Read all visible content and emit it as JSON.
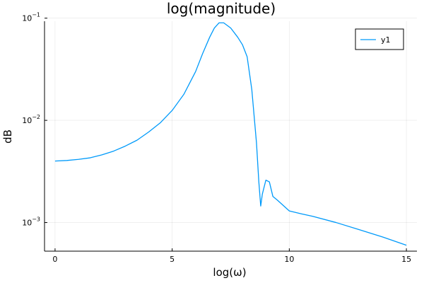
{
  "chart_data": {
    "type": "line",
    "title": "log(magnitude)",
    "xlabel": "log(ω)",
    "ylabel": "dB",
    "xlim": [
      -0.45,
      15.45
    ],
    "ylim_log10": [
      -3.28,
      -1.03
    ],
    "yscale": "log10",
    "grid": true,
    "legend_position": "top-right",
    "x_ticks": [
      0,
      5,
      10,
      15
    ],
    "x_tick_labels": [
      "0",
      "5",
      "10",
      "15"
    ],
    "y_ticks": [
      0.001,
      0.01,
      0.1
    ],
    "y_tick_labels": [
      {
        "base": "10",
        "exp": "−3"
      },
      {
        "base": "10",
        "exp": "−2"
      },
      {
        "base": "10",
        "exp": "−1"
      }
    ],
    "series": [
      {
        "name": "y1",
        "color": "#009AFA",
        "x": [
          0.0,
          0.5,
          1.0,
          1.5,
          2.0,
          2.5,
          3.0,
          3.5,
          4.0,
          4.5,
          5.0,
          5.5,
          6.0,
          6.3,
          6.6,
          6.8,
          7.0,
          7.2,
          7.5,
          7.8,
          8.0,
          8.2,
          8.4,
          8.6,
          8.7,
          8.78,
          8.85,
          9.0,
          9.15,
          9.3,
          9.5,
          9.7,
          10.0,
          10.5,
          11.0,
          12.0,
          13.0,
          14.0,
          15.0
        ],
        "y": [
          0.004,
          0.00405,
          0.00415,
          0.0043,
          0.0046,
          0.005,
          0.0056,
          0.0064,
          0.0077,
          0.0095,
          0.0125,
          0.018,
          0.03,
          0.045,
          0.065,
          0.08,
          0.09,
          0.09,
          0.08,
          0.065,
          0.055,
          0.042,
          0.02,
          0.006,
          0.0025,
          0.00145,
          0.0019,
          0.0026,
          0.0025,
          0.0018,
          0.00165,
          0.0015,
          0.0013,
          0.00122,
          0.00115,
          0.001,
          0.00085,
          0.00072,
          0.0006
        ]
      }
    ]
  }
}
